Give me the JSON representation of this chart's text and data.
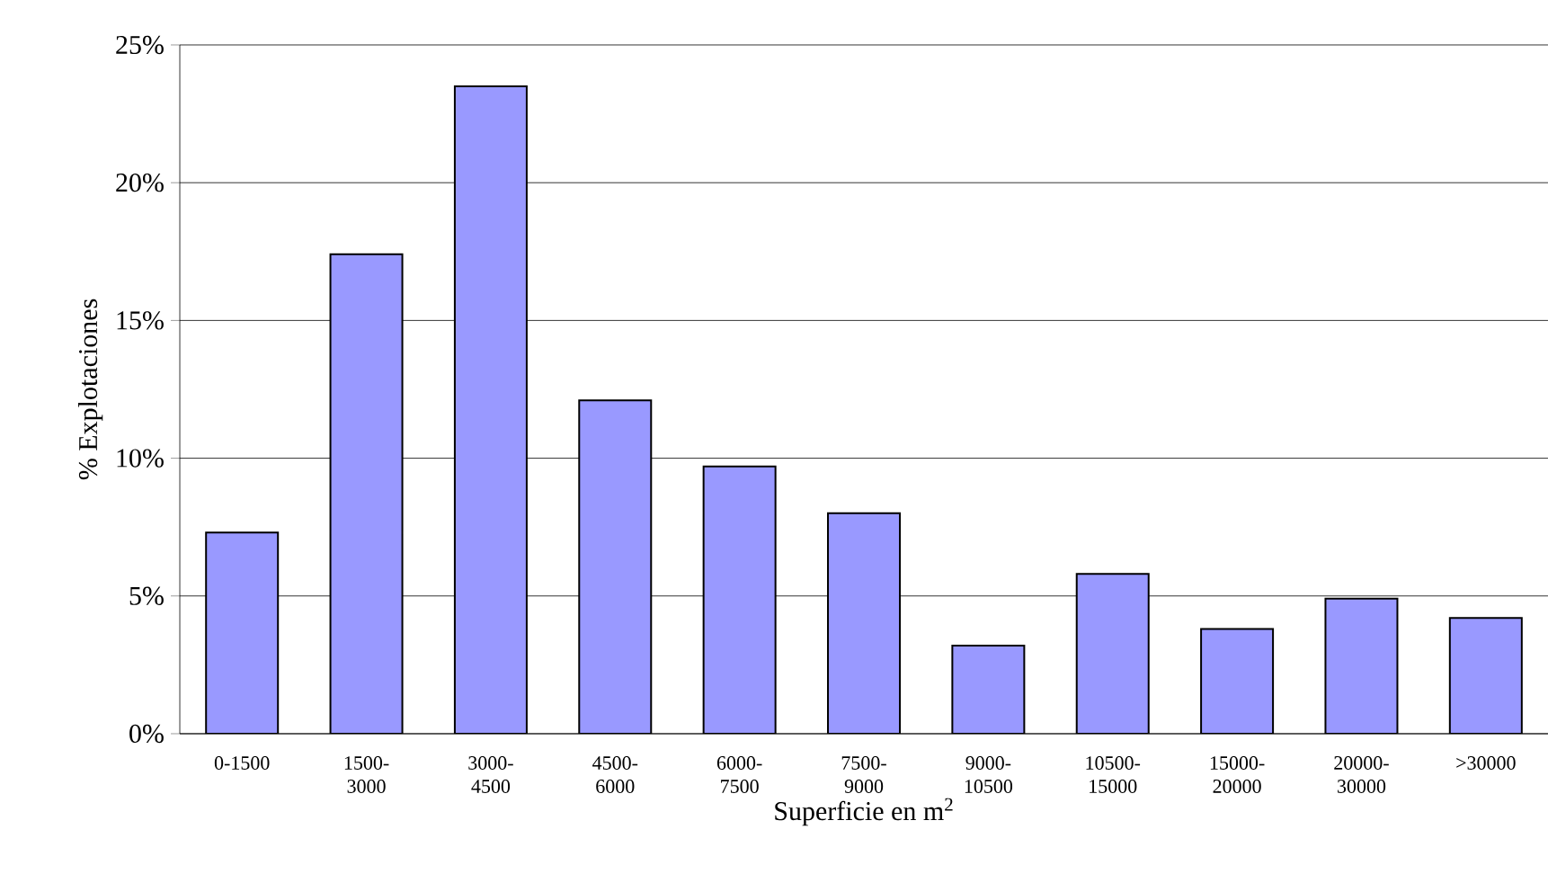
{
  "chart_data": {
    "type": "bar",
    "xlabel": "Superficie en m$^{2}$",
    "ylabel": "% Explotaciones",
    "categories": [
      "0-1500",
      "1500-3000",
      "3000-4500",
      "4500-6000",
      "6000-7500",
      "7500-9000",
      "9000-10500",
      "10500-15000",
      "15000-20000",
      "20000-30000",
      ">30000"
    ],
    "values": [
      7.3,
      17.4,
      23.5,
      12.1,
      9.7,
      8.0,
      3.2,
      5.8,
      3.8,
      4.9,
      4.2
    ],
    "color": "#9999ff",
    "ylim": [
      0,
      25
    ],
    "yticks": [
      {
        "value": 0,
        "label": "0%"
      },
      {
        "value": 5,
        "label": "5%"
      },
      {
        "value": 10,
        "label": "10%"
      },
      {
        "value": 15,
        "label": "15%"
      },
      {
        "value": 20,
        "label": "20%"
      },
      {
        "value": 25,
        "label": "25%"
      }
    ],
    "grid": "y"
  }
}
